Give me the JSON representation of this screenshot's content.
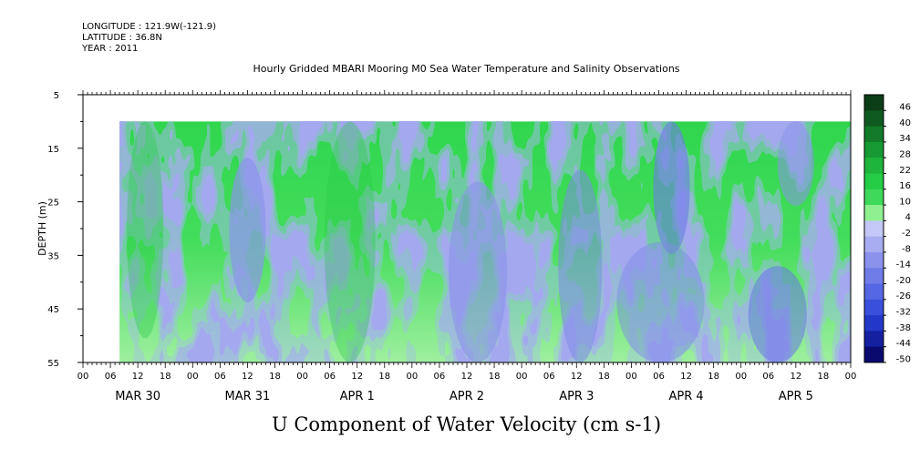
{
  "meta": {
    "longitude": "LONGITUDE : 121.9W(-121.9)",
    "latitude": "LATITUDE : 36.8N",
    "year": "YEAR : 2011"
  },
  "chart_data": {
    "type": "heatmap",
    "title": "Hourly Gridded MBARI Mooring M0 Sea Water Temperature and Salinity Observations",
    "variable_label": "U Component of Water Velocity (cm s-1)",
    "ylabel": "DEPTH (m)",
    "y_axis": {
      "range": [
        5,
        55
      ],
      "inverted": true,
      "ticks": [
        5,
        15,
        25,
        35,
        45,
        55
      ]
    },
    "x_axis": {
      "hour_ticks": [
        "00",
        "06",
        "12",
        "18",
        "00",
        "06",
        "12",
        "18",
        "00",
        "06",
        "12",
        "18",
        "00",
        "06",
        "12",
        "18",
        "00",
        "06",
        "12",
        "18",
        "00",
        "06",
        "12",
        "18",
        "00",
        "06",
        "12",
        "18",
        "00"
      ],
      "day_labels": [
        "MAR 30",
        "MAR 31",
        "APR  1",
        "APR  2",
        "APR  3",
        "APR  4",
        "APR  5"
      ]
    },
    "data_extent": {
      "time_start_hour": 8,
      "time_end_hour": 168,
      "depth_top": 10,
      "depth_bottom": 55
    },
    "colorbar": {
      "levels": [
        "46",
        "40",
        "34",
        "28",
        "22",
        "16",
        "10",
        "4",
        "-2",
        "-8",
        "-14",
        "-20",
        "-26",
        "-32",
        "-38",
        "-44",
        "-50"
      ],
      "range": [
        -50,
        52
      ]
    },
    "colors": {
      "positive_strong": "#0e4a1e",
      "positive": "#22cc44",
      "positive_light": "#8ff08f",
      "negative_light": "#a8a8f0",
      "negative": "#5a6ae6",
      "negative_strong": "#0a0a6e"
    }
  }
}
